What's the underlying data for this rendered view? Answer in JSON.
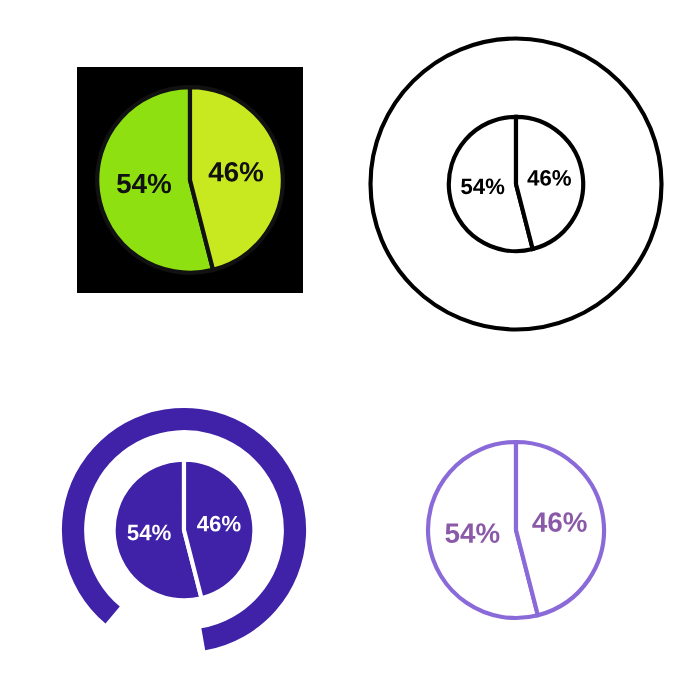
{
  "chart_data": [
    {
      "type": "pie",
      "categories": [
        null,
        null
      ],
      "values": [
        54,
        46
      ],
      "colors": [
        "#8ee010",
        "#c8e820"
      ],
      "value_labels": [
        "54%",
        "46%"
      ]
    },
    {
      "type": "pie",
      "categories": [
        null,
        null
      ],
      "values": [
        54,
        46
      ],
      "colors": [
        "#ffffff",
        "#ffffff"
      ],
      "value_labels": [
        "54%",
        "46%"
      ]
    },
    {
      "type": "pie",
      "categories": [
        null,
        null
      ],
      "values": [
        54,
        46
      ],
      "colors": [
        "#3f22a8",
        "#3f22a8"
      ],
      "value_labels": [
        "54%",
        "46%"
      ]
    },
    {
      "type": "pie",
      "categories": [
        null,
        null
      ],
      "values": [
        54,
        46
      ],
      "colors": [
        "#ffffff",
        "#ffffff"
      ],
      "value_labels": [
        "54%",
        "46%"
      ]
    }
  ]
}
